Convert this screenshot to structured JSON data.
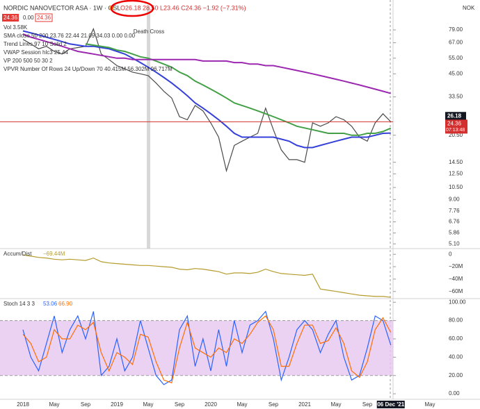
{
  "header": {
    "symbol": "NORDIC NANOVECTOR ASA · 1W · OSL",
    "interval_flag": "D",
    "ohlc": "O26.18 28.50 L23.46 C24.36 −1.92 (−7.31%)",
    "price_row": [
      "24.36",
      "0.00",
      "24.36"
    ],
    "currency": "NOK"
  },
  "chart_data": [
    {
      "type": "line",
      "log_scale": true,
      "legend_texts": [
        "Vol 3.58K",
        "SMA close 50 200  23.76 22.44 21.09 34.03 0.00 0.00",
        "Trend Lines 97 10 Solid 2",
        "VWAP Session hlc3  25.44",
        "VP 200 500 50 30 2",
        "VPVR Number Of Rows 24 Up/Down 70  40.415M 56.302M 96.717M"
      ],
      "annotation": "Death Cross",
      "categories": [
        "2018",
        null,
        null,
        null,
        "May",
        null,
        null,
        null,
        "Sep",
        null,
        null,
        null,
        "2019",
        null,
        null,
        null,
        "May",
        null,
        null,
        null,
        "Sep",
        null,
        null,
        null,
        "2020",
        null,
        null,
        null,
        "May",
        null,
        null,
        null,
        "Sep",
        null,
        null,
        null,
        "2021",
        null,
        null,
        null,
        "May",
        null,
        null,
        null,
        "Sep",
        null,
        null,
        "06 Dec '21",
        null,
        null,
        null,
        null,
        "May"
      ],
      "series": [
        {
          "color": "#4a4a4a",
          "values": [
            70,
            66,
            62,
            64,
            60,
            58,
            62,
            63,
            64,
            80,
            58,
            54,
            50,
            48,
            46,
            45,
            44,
            40,
            36,
            33,
            26,
            25,
            30,
            28,
            24,
            20,
            13,
            18,
            19,
            20,
            21,
            29,
            22,
            17,
            15,
            15,
            14.5,
            24,
            23,
            24,
            26,
            25,
            23,
            20,
            19,
            24,
            27,
            24.36,
            null,
            null,
            null,
            null,
            null
          ]
        },
        {
          "color": "#3440d8",
          "values": [
            78,
            76,
            74,
            72,
            70,
            68,
            66,
            65,
            64,
            64,
            63,
            62,
            60,
            58,
            55,
            52,
            49,
            46,
            43,
            40,
            37,
            34,
            31,
            29,
            27,
            25,
            23,
            21,
            20,
            20,
            20,
            20,
            20,
            19.5,
            19,
            18,
            17.5,
            17.5,
            18,
            18.5,
            19,
            19.5,
            20,
            20,
            20,
            20.5,
            21,
            21.09,
            null,
            null,
            null,
            null,
            null
          ]
        },
        {
          "color": "#43a047",
          "values": [
            null,
            null,
            null,
            null,
            null,
            null,
            null,
            null,
            66,
            65,
            64,
            63,
            61,
            60,
            58,
            56,
            55,
            53,
            51,
            49,
            46,
            44,
            41,
            39,
            37,
            35,
            33,
            31,
            30,
            29,
            28,
            27,
            26,
            25,
            24,
            23,
            22.5,
            22,
            21.5,
            21,
            21,
            21,
            20.5,
            20.5,
            21,
            21,
            21.5,
            22.44,
            null,
            null,
            null,
            null,
            null
          ]
        },
        {
          "color": "#9c27b0",
          "values": [
            75,
            72,
            70,
            68,
            66,
            64,
            62,
            60,
            59,
            58,
            57,
            56,
            55,
            55,
            54,
            54,
            54,
            54,
            54,
            54,
            54,
            54,
            54,
            53,
            53,
            53,
            53,
            52,
            52,
            51,
            51,
            50,
            50,
            49,
            48,
            47,
            46,
            45,
            44,
            43,
            42,
            41,
            40,
            39,
            38,
            37,
            36,
            35,
            null,
            null,
            null,
            null,
            null
          ]
        }
      ],
      "ylim": [
        4.8,
        106
      ],
      "yticks": [
        {
          "value": 79,
          "label": "79.00"
        },
        {
          "value": 67,
          "label": "67.00"
        },
        {
          "value": 55,
          "label": "55.00"
        },
        {
          "value": 45,
          "label": "45.00"
        },
        {
          "value": 33.5,
          "label": "33.50"
        },
        {
          "value": 20.5,
          "label": "20.50"
        },
        {
          "value": 14.5,
          "label": "14.50"
        },
        {
          "value": 12.5,
          "label": "12.50"
        },
        {
          "value": 10.5,
          "label": "10.50"
        },
        {
          "value": 9,
          "label": "9.00"
        },
        7.76,
        6.76,
        5.86,
        {
          "value": 5.1,
          "label": "5.10"
        }
      ],
      "price_labels": [
        26.18,
        24.36
      ],
      "countdown": "07:13:48",
      "last_line_color": "#d32f2f"
    },
    {
      "type": "line",
      "legend_texts": [
        "Accum/Dist",
        "−69.44M"
      ],
      "series": [
        {
          "color": "#b59b2b",
          "values": [
            -1000000,
            -3000000,
            -5000000,
            -6000000,
            -8000000,
            -9000000,
            -8000000,
            -9000000,
            -10000000,
            -6000000,
            -12000000,
            -14000000,
            -15000000,
            -16000000,
            -17000000,
            -18000000,
            -18000000,
            -19000000,
            -20000000,
            -21000000,
            -24000000,
            -25000000,
            -23000000,
            -24000000,
            -26000000,
            -28000000,
            -32000000,
            -30000000,
            -30000000,
            -31000000,
            -29000000,
            -24000000,
            -28000000,
            -31000000,
            -32000000,
            -33000000,
            -34000000,
            -32000000,
            -56000000,
            -58000000,
            -60000000,
            -62000000,
            -64000000,
            -66000000,
            -67000000,
            -68000000,
            -68000000,
            -69440000,
            null,
            null,
            null,
            null,
            null
          ]
        }
      ],
      "ylim": [
        9200000,
        -71500000
      ],
      "yticks": [
        0,
        {
          "value": -20000000,
          "label": "−20M"
        },
        {
          "value": -40000000,
          "label": "−40M"
        },
        {
          "value": -60000000,
          "label": "−60M"
        }
      ]
    },
    {
      "type": "line",
      "legend_texts": [
        "Stoch 14 3 3",
        "53.06",
        "66.90"
      ],
      "band": [
        20,
        80
      ],
      "band_color": "#e6c7f0",
      "series": [
        {
          "color": "#2962ff",
          "values": [
            70,
            40,
            25,
            55,
            85,
            45,
            70,
            85,
            60,
            90,
            20,
            30,
            60,
            25,
            40,
            80,
            50,
            20,
            10,
            15,
            70,
            85,
            30,
            60,
            25,
            70,
            30,
            80,
            45,
            75,
            80,
            90,
            60,
            15,
            40,
            70,
            80,
            70,
            45,
            65,
            80,
            40,
            15,
            20,
            50,
            85,
            80,
            53.06,
            null,
            null,
            null,
            null,
            null
          ]
        },
        {
          "color": "#ff6d00",
          "values": [
            65,
            55,
            35,
            40,
            70,
            60,
            60,
            75,
            70,
            78,
            45,
            25,
            45,
            40,
            32,
            65,
            62,
            35,
            15,
            12,
            50,
            78,
            50,
            45,
            40,
            50,
            45,
            60,
            55,
            65,
            78,
            85,
            70,
            30,
            30,
            55,
            75,
            75,
            55,
            58,
            72,
            55,
            25,
            18,
            35,
            70,
            83,
            66.9,
            null,
            null,
            null,
            null,
            null
          ]
        }
      ],
      "ylim": [
        -6,
        104
      ],
      "yticks": [
        {
          "value": 100,
          "label": "100.00"
        },
        {
          "value": 80,
          "label": "80.00"
        },
        {
          "value": 60,
          "label": "60.00"
        },
        {
          "value": 40,
          "label": "40.00"
        },
        {
          "value": 20,
          "label": "20.00"
        },
        {
          "value": 0,
          "label": "0.00"
        }
      ]
    }
  ]
}
